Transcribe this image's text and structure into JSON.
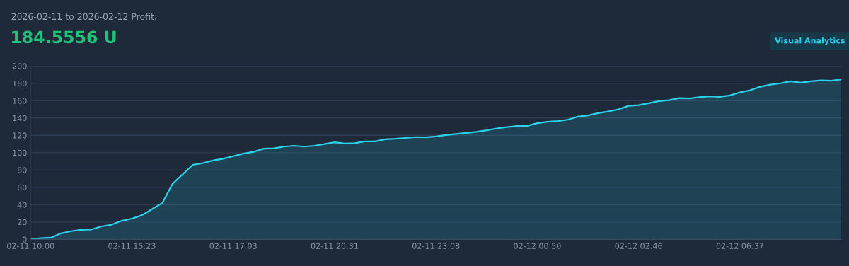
{
  "chart_data": {
    "type": "area",
    "title": "2026-02-11 to 2026-02-12 Profit:",
    "subtitle": "184.5556 U",
    "annotations": [
      "Visual Analytics"
    ],
    "categories": [
      "02-11 10:00",
      null,
      null,
      null,
      null,
      null,
      null,
      null,
      null,
      null,
      "02-11 15:23",
      null,
      null,
      null,
      null,
      null,
      null,
      null,
      null,
      null,
      "02-11 17:03",
      null,
      null,
      null,
      null,
      null,
      null,
      null,
      null,
      null,
      "02-11 20:31",
      null,
      null,
      null,
      null,
      null,
      null,
      null,
      null,
      null,
      "02-11 23:08",
      null,
      null,
      null,
      null,
      null,
      null,
      null,
      null,
      null,
      "02-12 00:50",
      null,
      null,
      null,
      null,
      null,
      null,
      null,
      null,
      null,
      "02-12 02:46",
      null,
      null,
      null,
      null,
      null,
      null,
      null,
      null,
      null,
      "02-12 06:37",
      null,
      null,
      null,
      null,
      null,
      null,
      null,
      null,
      null,
      null
    ],
    "series": [
      {
        "color": "#2bd2ec",
        "values": [
          0,
          1.5,
          2,
          7,
          9.5,
          11,
          11.5,
          15,
          17,
          21.5,
          24,
          28,
          35,
          42,
          64,
          75,
          86,
          88,
          91,
          93,
          96,
          99,
          101,
          104.6,
          105,
          107,
          108,
          107,
          108,
          110,
          112,
          110.6,
          111,
          113,
          113,
          115.5,
          116,
          117,
          118,
          117.7,
          118.7,
          120.4,
          121.5,
          122.8,
          124,
          125.8,
          128,
          129.6,
          130.7,
          131,
          134,
          135.6,
          136.4,
          138,
          141.6,
          143,
          145.7,
          147.5,
          150,
          154,
          154.8,
          157,
          159.5,
          160.6,
          163,
          162.5,
          164,
          165,
          164.4,
          166,
          169.6,
          172,
          176,
          178.5,
          180,
          182.3,
          180.7,
          182.3,
          183.4,
          183,
          184.6
        ]
      }
    ],
    "ylim": [
      0,
      200
    ],
    "yticks": [
      0,
      20,
      40,
      60,
      80,
      100,
      120,
      140,
      160,
      180,
      200
    ],
    "grid": "y"
  }
}
